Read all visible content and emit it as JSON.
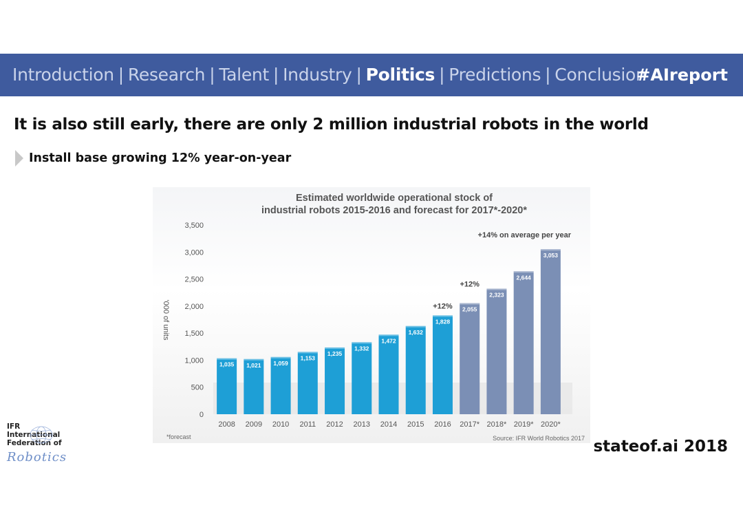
{
  "nav": {
    "items": [
      {
        "label": "Introduction",
        "active": false
      },
      {
        "label": "Research",
        "active": false
      },
      {
        "label": "Talent",
        "active": false
      },
      {
        "label": "Industry",
        "active": false
      },
      {
        "label": "Politics",
        "active": true
      },
      {
        "label": "Predictions",
        "active": false
      },
      {
        "label": "Conclusion",
        "active": false
      }
    ],
    "separator": "|",
    "hashtag": "#AIreport"
  },
  "headline": "It is also still early, there are only 2 million industrial robots in the world",
  "bullet": "Install base growing 12% year-on-year",
  "logo": {
    "lines": [
      "IFR",
      "International",
      "Federation of"
    ],
    "script": "Robotics"
  },
  "footer": "stateof.ai 2018",
  "chart_data": {
    "type": "bar",
    "title": "Estimated worldwide operational stock of\nindustrial robots 2015-2016 and forecast for 2017*-2020*",
    "ylabel": "'000 of units",
    "xlabel": "",
    "ylim": [
      0,
      3500
    ],
    "yticks": [
      0,
      500,
      1000,
      1500,
      2000,
      2500,
      3000,
      3500
    ],
    "yticklabels": [
      "0",
      "500",
      "1,000",
      "1,500",
      "2,000",
      "2,500",
      "3,000",
      "3,500"
    ],
    "categories": [
      "2008",
      "2009",
      "2010",
      "2011",
      "2012",
      "2013",
      "2014",
      "2015",
      "2016",
      "2017*",
      "2018*",
      "2019*",
      "2020*"
    ],
    "values": [
      1035,
      1021,
      1059,
      1153,
      1235,
      1332,
      1472,
      1632,
      1828,
      2055,
      2323,
      2644,
      3053
    ],
    "value_labels": [
      "1,035",
      "1,021",
      "1,059",
      "1,153",
      "1,235",
      "1,332",
      "1,472",
      "1,632",
      "1,828",
      "2,055",
      "2,323",
      "2,644",
      "3,053"
    ],
    "forecast_from_index": 9,
    "colors": {
      "actual": "#1e9fd6",
      "forecast": "#7b8fb5"
    },
    "annotations": [
      {
        "text": "+12%",
        "category": "2016"
      },
      {
        "text": "+12%",
        "category": "2017*"
      },
      {
        "text": "+14% on average per year",
        "category": "2019*"
      }
    ],
    "footnote": "*forecast",
    "source": "Source: IFR World Robotics 2017"
  }
}
